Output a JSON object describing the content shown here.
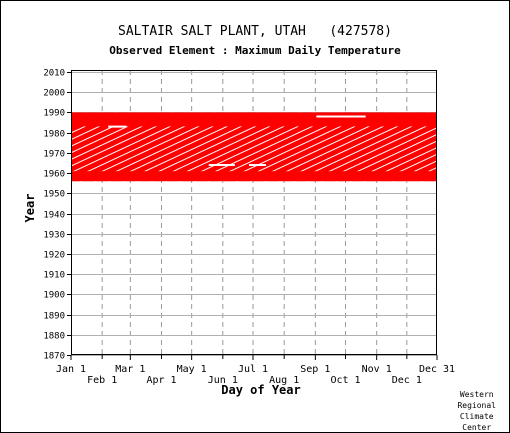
{
  "chart_data": {
    "type": "scatter",
    "title": "SALTAIR SALT PLANT, UTAH   (427578)",
    "subtitle": "Observed Element : Maximum Daily Temperature",
    "xlabel": "Day of Year",
    "ylabel": "Year",
    "x_ticks_upper": [
      "Jan 1",
      "Mar 1",
      "May 1",
      "Jul 1",
      "Sep 1",
      "Nov 1",
      "Dec 31"
    ],
    "x_ticks_lower": [
      "Feb 1",
      "Apr 1",
      "Jun 1",
      "Aug 1",
      "Oct 1",
      "Dec 1"
    ],
    "y_ticks": [
      "2010",
      "2000",
      "1990",
      "1980",
      "1970",
      "1960",
      "1950",
      "1940",
      "1930",
      "1920",
      "1910",
      "1900",
      "1890",
      "1880",
      "1870"
    ],
    "ylim": [
      1870,
      2011
    ],
    "xlim": [
      1,
      365
    ],
    "grid": true,
    "series": [
      {
        "color": "#ff0000",
        "coverage_years": [
          1956,
          1990
        ],
        "gaps": [
          {
            "year": 1988,
            "day_start": 245,
            "day_end": 294
          },
          {
            "year": 1983,
            "day_start": 38,
            "day_end": 56
          },
          {
            "year": 1964,
            "day_start": 138,
            "day_end": 164
          },
          {
            "year": 1964,
            "day_start": 178,
            "day_end": 195
          }
        ]
      }
    ]
  },
  "credit": [
    "Western",
    "Regional",
    "Climate",
    "Center"
  ]
}
